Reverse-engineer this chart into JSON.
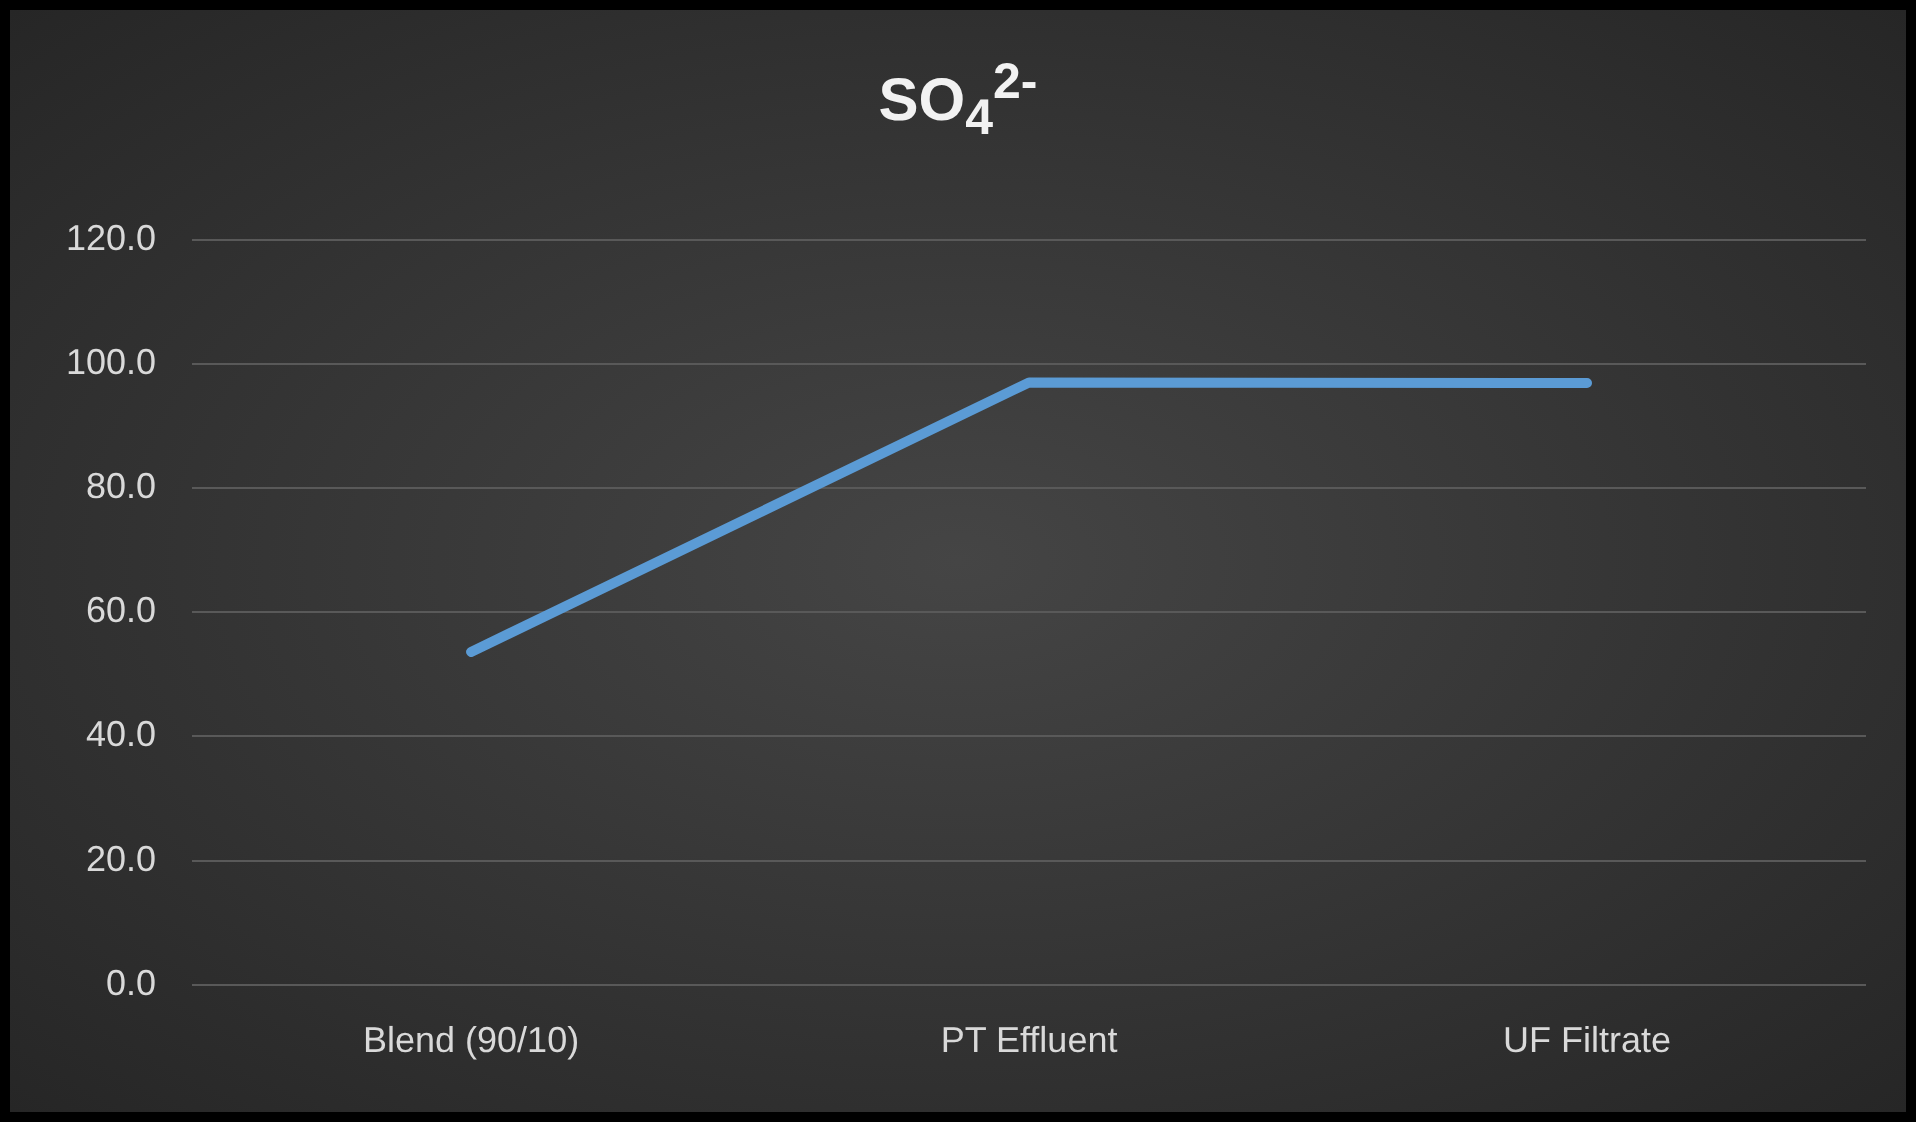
{
  "chart_data": {
    "type": "line",
    "title": "SO$_{4}$$^{2-}$",
    "categories": [
      "Blend (90/10)",
      "PT Effluent",
      "UF Filtrate"
    ],
    "series": [
      {
        "color": "#5b9bd5",
        "values": [
          53.6,
          97.0,
          96.9
        ]
      }
    ],
    "ylim": [
      0,
      120
    ],
    "yticks": [
      {
        "value": 0,
        "label": "0.0"
      },
      {
        "value": 20,
        "label": "20.0"
      },
      {
        "value": 40,
        "label": "40.0"
      },
      {
        "value": 60,
        "label": "60.0"
      },
      {
        "value": 80,
        "label": "80.0"
      },
      {
        "value": 100,
        "label": "100.0"
      },
      {
        "value": 120,
        "label": "120.0"
      }
    ],
    "grid": "y",
    "legend": false,
    "marker": "none",
    "line_style": "solid"
  }
}
